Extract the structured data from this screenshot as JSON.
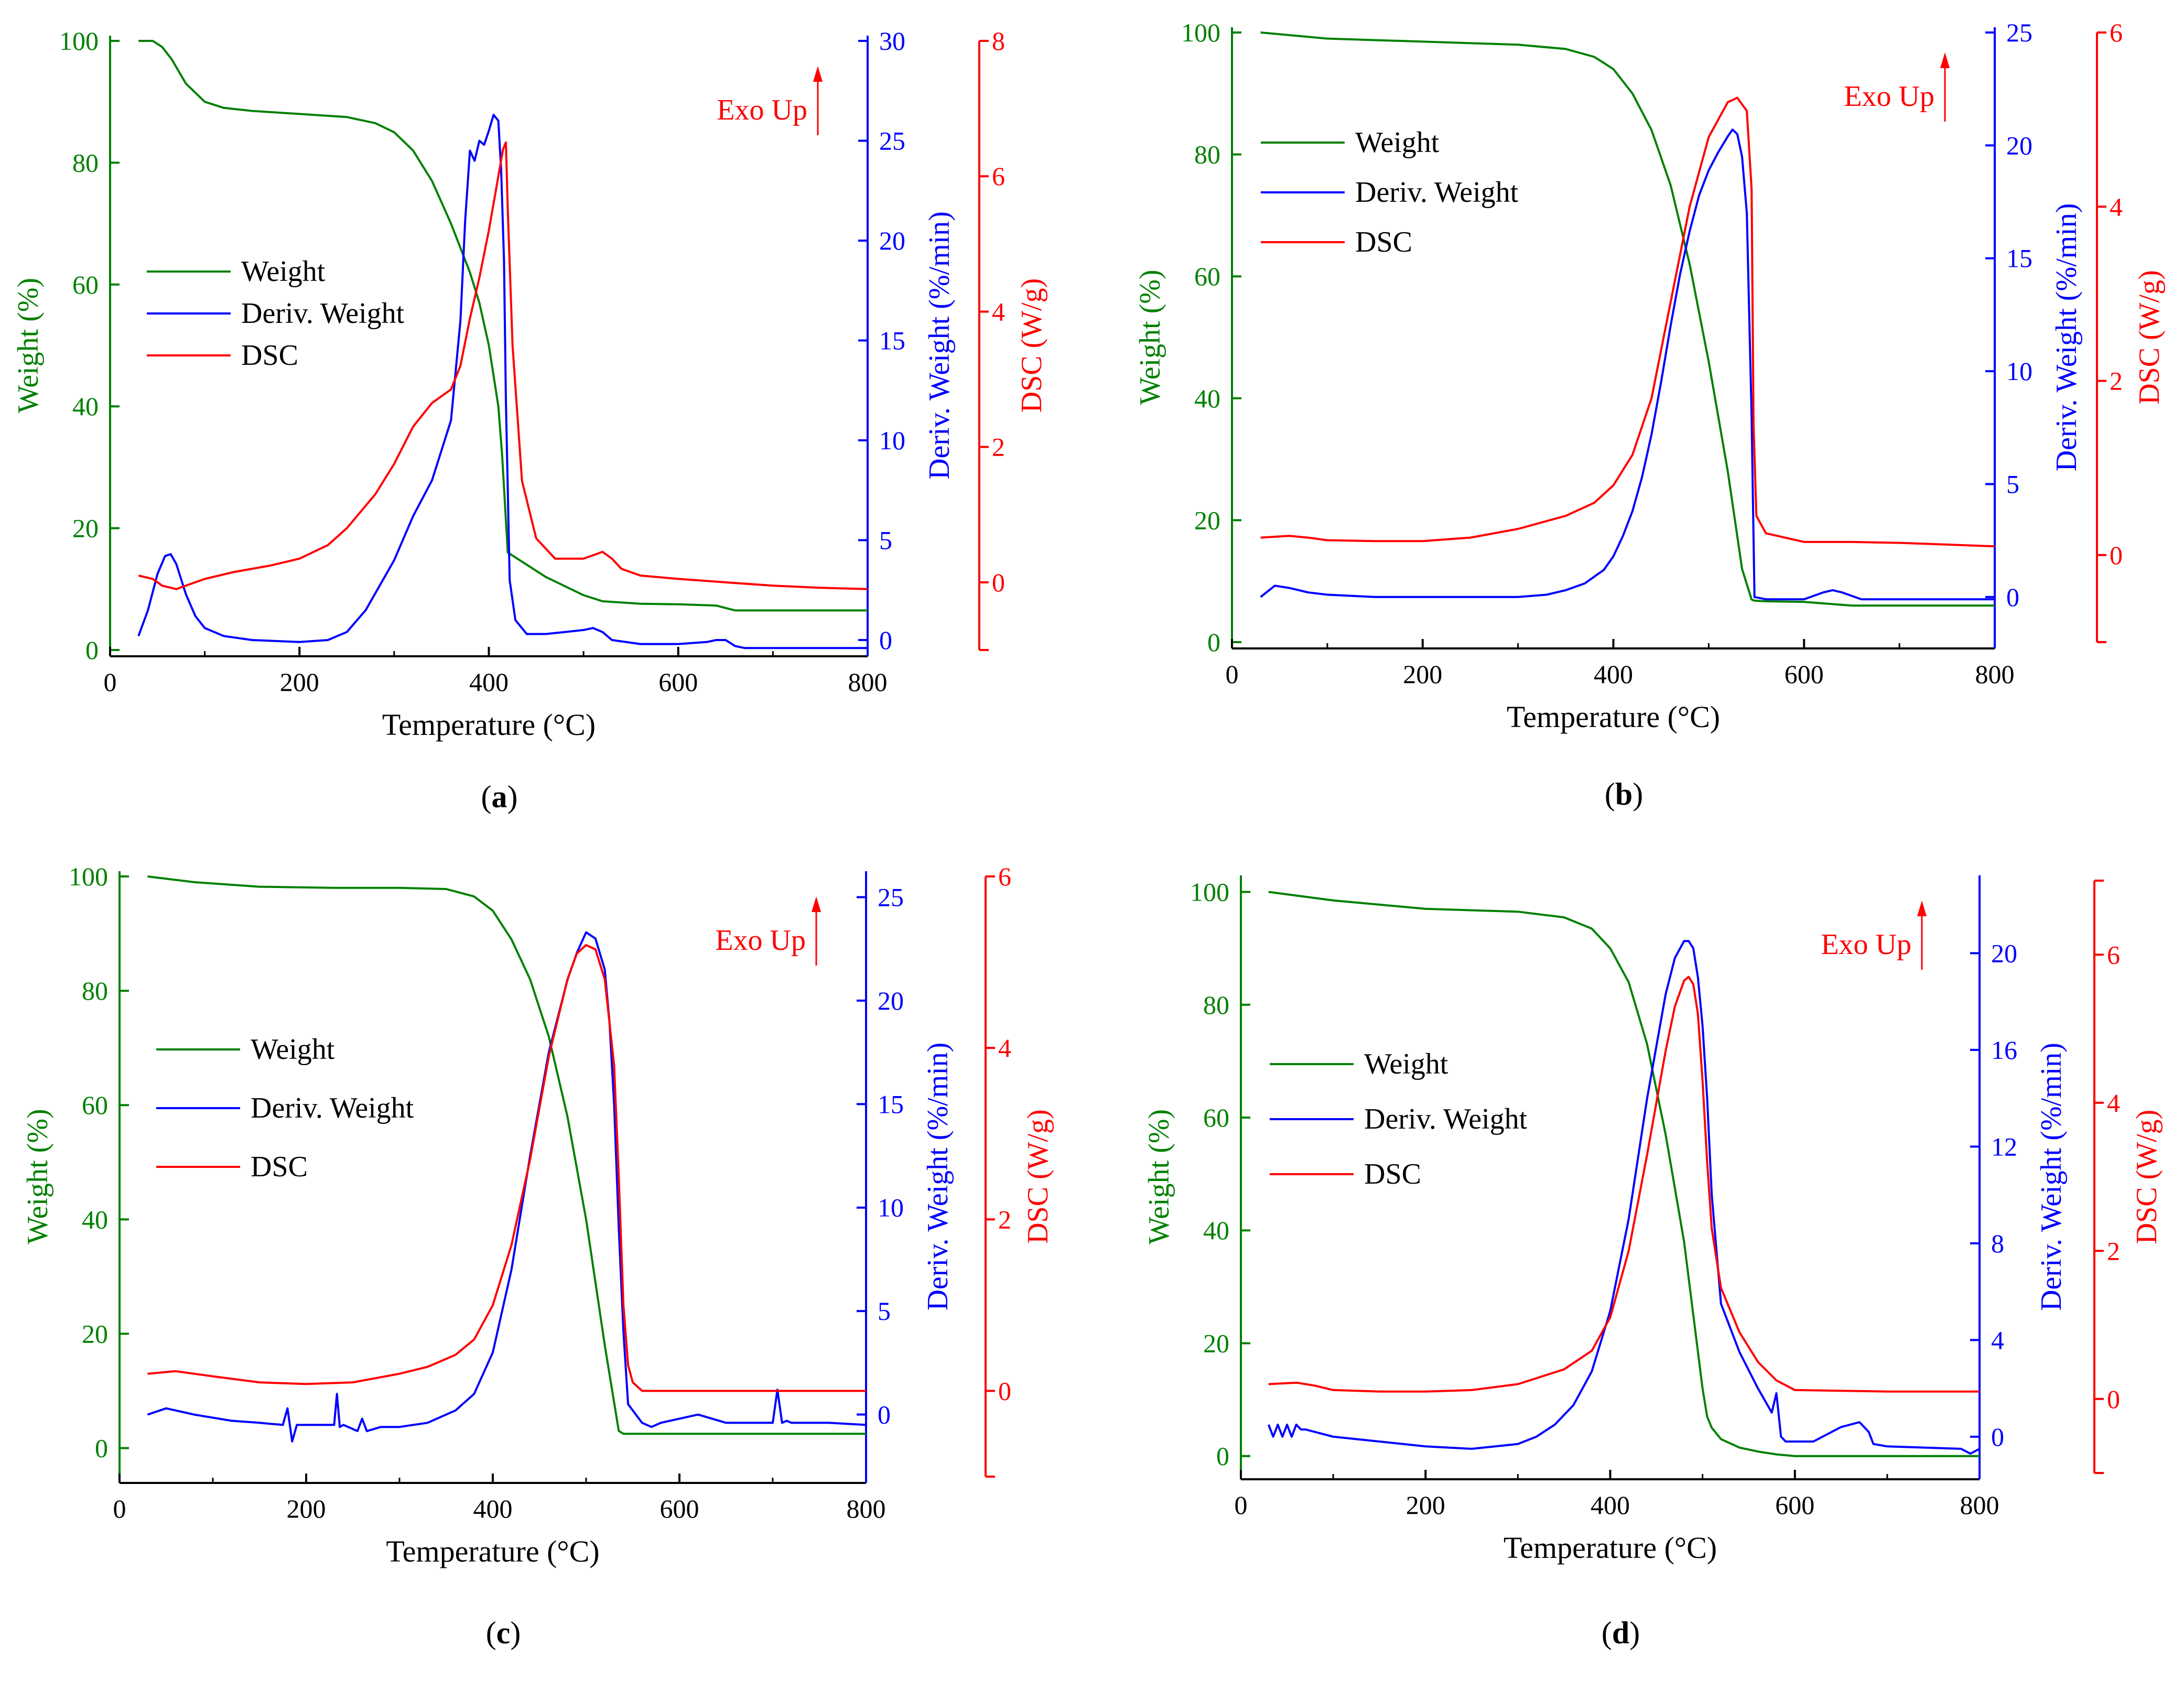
{
  "colors": {
    "weight": "#008000",
    "deriv": "#0000ff",
    "dsc": "#ff0000",
    "axis": "#000000"
  },
  "chart_data": [
    {
      "type": "line",
      "panel_label": "a",
      "xlabel": "Temperature (°C)",
      "ylabel_weight": "Weight (%)",
      "ylabel_deriv": "Deriv. Weight (%/min)",
      "ylabel_dsc": "DSC (W/g)",
      "exo_label": "Exo Up",
      "legend": [
        "Weight",
        "Deriv. Weight",
        "DSC"
      ],
      "xlim": [
        0,
        800
      ],
      "xticks": [
        0,
        200,
        400,
        600,
        800
      ],
      "weight_lim": [
        0,
        100
      ],
      "weight_ticks": [
        0,
        20,
        40,
        60,
        80,
        100
      ],
      "deriv_lim": [
        -0.5,
        30
      ],
      "deriv_ticks": [
        0,
        5,
        10,
        15,
        20,
        25,
        30
      ],
      "dsc_lim": [
        -1,
        8
      ],
      "dsc_ticks": [
        0,
        2,
        4,
        6,
        8
      ],
      "series": [
        {
          "name": "Weight",
          "axis": "weight",
          "x": [
            30,
            45,
            55,
            65,
            80,
            100,
            120,
            150,
            200,
            250,
            280,
            300,
            320,
            340,
            360,
            380,
            390,
            400,
            410,
            414,
            420,
            440,
            460,
            480,
            500,
            520,
            540,
            560,
            600,
            640,
            660,
            700,
            750,
            800
          ],
          "y": [
            100,
            100,
            99,
            97,
            93,
            90,
            89,
            88.5,
            88,
            87.5,
            86.5,
            85,
            82,
            77,
            70,
            62,
            57,
            50,
            40,
            32,
            16,
            14,
            12,
            10.5,
            9,
            8,
            7.8,
            7.6,
            7.5,
            7.3,
            6.5,
            6.5,
            6.5,
            6.5
          ]
        },
        {
          "name": "Deriv. Weight",
          "axis": "deriv",
          "x": [
            30,
            40,
            50,
            58,
            64,
            70,
            80,
            90,
            100,
            120,
            150,
            200,
            230,
            250,
            270,
            300,
            320,
            340,
            360,
            370,
            375,
            380,
            385,
            390,
            395,
            400,
            405,
            410,
            413,
            416,
            418,
            422,
            428,
            440,
            460,
            480,
            500,
            510,
            520,
            530,
            560,
            600,
            630,
            640,
            650,
            660,
            670,
            700,
            750,
            800
          ],
          "y": [
            0.2,
            1.5,
            3.3,
            4.2,
            4.3,
            3.8,
            2.3,
            1.2,
            0.6,
            0.2,
            0,
            -0.1,
            0,
            0.4,
            1.5,
            4,
            6.2,
            8,
            11,
            16,
            21,
            24.5,
            24,
            25,
            24.8,
            25.5,
            26.3,
            26,
            23.5,
            19,
            12,
            3,
            1,
            0.3,
            0.3,
            0.4,
            0.5,
            0.6,
            0.4,
            0,
            -0.2,
            -0.2,
            -0.1,
            0,
            0,
            -0.3,
            -0.4,
            -0.4,
            -0.4,
            -0.4
          ]
        },
        {
          "name": "DSC",
          "axis": "dsc",
          "x": [
            30,
            45,
            55,
            70,
            80,
            100,
            130,
            170,
            200,
            230,
            250,
            280,
            300,
            320,
            340,
            360,
            370,
            380,
            390,
            400,
            410,
            415,
            418,
            420,
            425,
            435,
            450,
            470,
            500,
            520,
            530,
            540,
            560,
            600,
            650,
            700,
            750,
            800
          ],
          "y": [
            0.1,
            0.05,
            -0.05,
            -0.1,
            -0.05,
            0.05,
            0.15,
            0.25,
            0.35,
            0.55,
            0.8,
            1.3,
            1.75,
            2.3,
            2.65,
            2.85,
            3.2,
            3.9,
            4.5,
            5.2,
            6,
            6.4,
            6.5,
            5.5,
            3.5,
            1.5,
            0.65,
            0.35,
            0.35,
            0.45,
            0.35,
            0.2,
            0.1,
            0.05,
            0,
            -0.05,
            -0.08,
            -0.1
          ]
        }
      ]
    },
    {
      "type": "line",
      "panel_label": "b",
      "xlabel": "Temperature (°C)",
      "ylabel_weight": "Weight (%)",
      "ylabel_deriv": "Deriv. Weight (%/min)",
      "ylabel_dsc": "DSC (W/g)",
      "exo_label": "Exo Up",
      "legend": [
        "Weight",
        "Deriv. Weight",
        "DSC"
      ],
      "xlim": [
        0,
        800
      ],
      "xticks": [
        0,
        200,
        400,
        600,
        800
      ],
      "weight_lim": [
        0,
        100
      ],
      "weight_ticks": [
        0,
        20,
        40,
        60,
        80,
        100
      ],
      "deriv_lim": [
        -2,
        25
      ],
      "deriv_ticks": [
        0,
        5,
        10,
        15,
        20,
        25
      ],
      "dsc_lim": [
        -1,
        6
      ],
      "dsc_ticks": [
        0,
        2,
        4,
        6
      ],
      "series": [
        {
          "name": "Weight",
          "axis": "weight",
          "x": [
            30,
            100,
            200,
            300,
            350,
            380,
            400,
            420,
            440,
            460,
            480,
            500,
            520,
            535,
            545,
            548,
            560,
            600,
            650,
            700,
            750,
            800
          ],
          "y": [
            100,
            99,
            98.5,
            98,
            97.3,
            96,
            94,
            90,
            84,
            75,
            62,
            46,
            28,
            12,
            7,
            6.8,
            6.7,
            6.6,
            6,
            6,
            6,
            6
          ]
        },
        {
          "name": "Deriv. Weight",
          "axis": "deriv",
          "x": [
            30,
            45,
            60,
            80,
            100,
            150,
            200,
            250,
            300,
            330,
            350,
            370,
            390,
            400,
            410,
            420,
            430,
            440,
            450,
            460,
            470,
            480,
            490,
            500,
            510,
            520,
            525,
            530,
            535,
            540,
            545,
            548,
            560,
            600,
            620,
            630,
            640,
            660,
            700,
            750,
            800
          ],
          "y": [
            0,
            0.5,
            0.4,
            0.2,
            0.1,
            0,
            0,
            0,
            0,
            0.1,
            0.3,
            0.6,
            1.2,
            1.8,
            2.7,
            3.8,
            5.3,
            7.2,
            9.5,
            12,
            14.3,
            16.2,
            17.8,
            18.9,
            19.7,
            20.4,
            20.7,
            20.5,
            19.5,
            17,
            8,
            0,
            -0.1,
            -0.1,
            0.2,
            0.3,
            0.2,
            -0.1,
            -0.1,
            -0.1,
            -0.1
          ]
        },
        {
          "name": "DSC",
          "axis": "dsc",
          "x": [
            30,
            60,
            80,
            100,
            150,
            200,
            250,
            300,
            350,
            380,
            400,
            420,
            440,
            460,
            480,
            500,
            520,
            530,
            540,
            545,
            547,
            550,
            560,
            600,
            650,
            700,
            750,
            800
          ],
          "y": [
            0.2,
            0.22,
            0.2,
            0.17,
            0.16,
            0.16,
            0.2,
            0.3,
            0.45,
            0.6,
            0.8,
            1.15,
            1.8,
            2.9,
            4,
            4.8,
            5.2,
            5.25,
            5.1,
            4.2,
            1.5,
            0.45,
            0.25,
            0.15,
            0.15,
            0.14,
            0.12,
            0.1
          ]
        }
      ]
    },
    {
      "type": "line",
      "panel_label": "c",
      "xlabel": "Temperature (°C)",
      "ylabel_weight": "Weight (%)",
      "ylabel_deriv": "Deriv. Weight (%/min)",
      "ylabel_dsc": "DSC (W/g)",
      "exo_label": "Exo Up",
      "legend": [
        "Weight",
        "Deriv. Weight",
        "DSC"
      ],
      "xlim": [
        0,
        800
      ],
      "xticks": [
        0,
        200,
        400,
        600,
        800
      ],
      "weight_lim": [
        -5,
        100
      ],
      "weight_ticks": [
        0,
        20,
        40,
        60,
        80,
        100
      ],
      "deriv_lim": [
        -3,
        26
      ],
      "deriv_ticks": [
        0,
        5,
        10,
        15,
        20,
        25
      ],
      "dsc_lim": [
        -1,
        6
      ],
      "dsc_ticks": [
        0,
        2,
        4,
        6
      ],
      "series": [
        {
          "name": "Weight",
          "axis": "weight",
          "x": [
            30,
            80,
            150,
            230,
            300,
            350,
            380,
            400,
            420,
            440,
            460,
            480,
            500,
            520,
            535,
            540,
            560,
            600,
            700,
            800
          ],
          "y": [
            100,
            99,
            98.2,
            98,
            98,
            97.8,
            96.5,
            94,
            89,
            82,
            72,
            58,
            40,
            18,
            3,
            2.5,
            2.5,
            2.5,
            2.5,
            2.5
          ]
        },
        {
          "name": "Deriv. Weight",
          "axis": "deriv",
          "x": [
            30,
            50,
            80,
            120,
            150,
            175,
            180,
            185,
            190,
            200,
            230,
            233,
            236,
            240,
            255,
            260,
            265,
            280,
            300,
            330,
            360,
            380,
            400,
            420,
            440,
            460,
            480,
            490,
            500,
            510,
            520,
            525,
            530,
            535,
            540,
            545,
            560,
            570,
            580,
            620,
            650,
            700,
            705,
            710,
            715,
            720,
            760,
            800
          ],
          "y": [
            0,
            0.3,
            0,
            -0.3,
            -0.4,
            -0.5,
            0.3,
            -1.3,
            -0.5,
            -0.5,
            -0.5,
            1,
            -0.6,
            -0.5,
            -0.8,
            -0.2,
            -0.8,
            -0.6,
            -0.6,
            -0.4,
            0.2,
            1,
            3,
            7,
            12.5,
            17.5,
            21,
            22.3,
            23.3,
            23,
            21.5,
            19,
            15,
            9,
            4,
            0.5,
            -0.4,
            -0.6,
            -0.4,
            0,
            -0.4,
            -0.4,
            1.2,
            -0.4,
            -0.3,
            -0.4,
            -0.4,
            -0.5
          ]
        },
        {
          "name": "DSC",
          "axis": "dsc",
          "x": [
            30,
            60,
            80,
            100,
            150,
            200,
            250,
            300,
            330,
            360,
            380,
            400,
            420,
            440,
            460,
            480,
            490,
            500,
            510,
            520,
            530,
            535,
            540,
            545,
            550,
            560,
            600,
            650,
            700,
            800
          ],
          "y": [
            0.2,
            0.23,
            0.2,
            0.17,
            0.1,
            0.08,
            0.1,
            0.2,
            0.28,
            0.42,
            0.6,
            1,
            1.7,
            2.7,
            3.9,
            4.8,
            5.1,
            5.2,
            5.15,
            4.8,
            3.8,
            2.5,
            1,
            0.3,
            0.1,
            0,
            0,
            0,
            0,
            0
          ]
        }
      ]
    },
    {
      "type": "line",
      "panel_label": "d",
      "xlabel": "Temperature (°C)",
      "ylabel_weight": "Weight (%)",
      "ylabel_deriv": "Deriv. Weight (%/min)",
      "ylabel_dsc": "DSC (W/g)",
      "exo_label": "Exo Up",
      "legend": [
        "Weight",
        "Deriv. Weight",
        "DSC"
      ],
      "xlim": [
        0,
        800
      ],
      "xticks": [
        0,
        200,
        400,
        600,
        800
      ],
      "weight_lim": [
        -3,
        102
      ],
      "weight_ticks": [
        0,
        20,
        40,
        60,
        80,
        100
      ],
      "deriv_lim": [
        -1.5,
        23
      ],
      "deriv_ticks": [
        0,
        4,
        8,
        12,
        16,
        20
      ],
      "dsc_lim": [
        -1,
        7
      ],
      "dsc_ticks": [
        0,
        2,
        4,
        6
      ],
      "series": [
        {
          "name": "Weight",
          "axis": "weight",
          "x": [
            30,
            100,
            200,
            300,
            350,
            380,
            400,
            420,
            440,
            460,
            480,
            490,
            500,
            505,
            510,
            520,
            540,
            560,
            580,
            600,
            700,
            800
          ],
          "y": [
            100,
            98.5,
            97,
            96.5,
            95.5,
            93.5,
            90,
            84,
            73,
            57,
            38,
            25,
            12,
            7,
            5,
            3,
            1.5,
            0.8,
            0.3,
            0,
            0,
            0
          ]
        },
        {
          "name": "Deriv. Weight",
          "axis": "deriv",
          "x": [
            30,
            35,
            40,
            45,
            50,
            55,
            60,
            65,
            70,
            100,
            150,
            200,
            250,
            300,
            320,
            340,
            360,
            380,
            400,
            420,
            440,
            460,
            470,
            480,
            485,
            490,
            495,
            500,
            505,
            510,
            520,
            540,
            560,
            575,
            580,
            585,
            590,
            620,
            650,
            670,
            680,
            685,
            700,
            780,
            790,
            800
          ],
          "y": [
            0.5,
            0,
            0.5,
            0,
            0.5,
            0,
            0.5,
            0.3,
            0.3,
            0,
            -0.2,
            -0.4,
            -0.5,
            -0.3,
            0,
            0.5,
            1.3,
            2.7,
            5.2,
            9,
            14,
            18.3,
            19.8,
            20.5,
            20.5,
            20.2,
            19,
            17,
            14,
            10,
            5.5,
            3.5,
            2,
            1,
            1.8,
            0,
            -0.2,
            -0.2,
            0.4,
            0.6,
            0.2,
            -0.3,
            -0.4,
            -0.5,
            -0.7,
            -0.5
          ]
        },
        {
          "name": "DSC",
          "axis": "dsc",
          "x": [
            30,
            60,
            80,
            100,
            150,
            200,
            250,
            300,
            350,
            380,
            400,
            420,
            440,
            460,
            470,
            480,
            485,
            490,
            495,
            500,
            505,
            510,
            520,
            540,
            560,
            580,
            600,
            700,
            800
          ],
          "y": [
            0.2,
            0.22,
            0.18,
            0.12,
            0.1,
            0.1,
            0.12,
            0.2,
            0.4,
            0.65,
            1.1,
            2,
            3.3,
            4.7,
            5.3,
            5.65,
            5.7,
            5.6,
            5.2,
            4.3,
            3.2,
            2.3,
            1.5,
            0.9,
            0.5,
            0.25,
            0.12,
            0.1,
            0.1
          ]
        }
      ]
    }
  ]
}
